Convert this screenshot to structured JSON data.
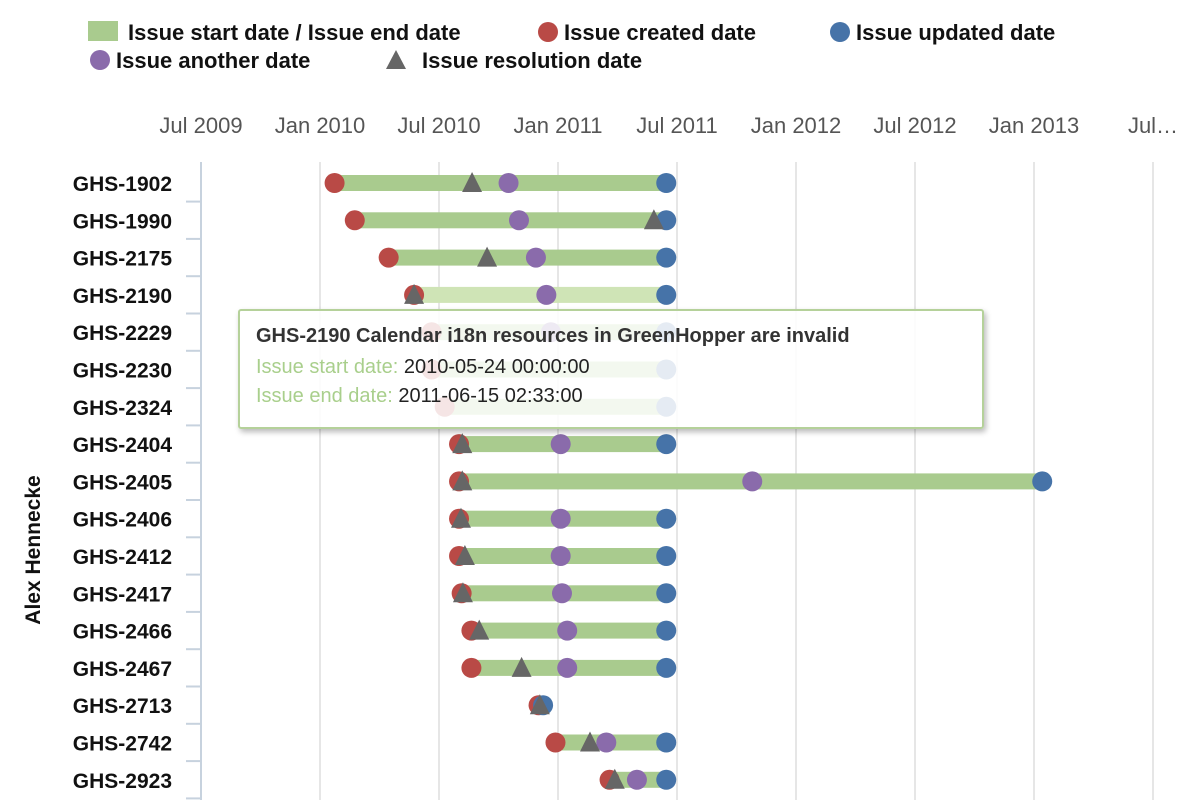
{
  "chart_data": {
    "type": "gantt",
    "legend": [
      {
        "name": "Issue start date / Issue end date",
        "marker": "bar",
        "color": "#a9cb8e"
      },
      {
        "name": "Issue created date",
        "marker": "circle",
        "color": "#b94a46"
      },
      {
        "name": "Issue updated date",
        "marker": "circle",
        "color": "#4673a8"
      },
      {
        "name": "Issue another date",
        "marker": "circle",
        "color": "#8a6bab"
      },
      {
        "name": "Issue resolution date",
        "marker": "triangle",
        "color": "#666666"
      }
    ],
    "x_axis": {
      "range": [
        "2009-07-01",
        "2013-07-01"
      ],
      "tick_labels": [
        "Jul 2009",
        "Jan 2010",
        "Jul 2010",
        "Jan 2011",
        "Jul 2011",
        "Jan 2012",
        "Jul 2012",
        "Jan 2013",
        "Jul…"
      ]
    },
    "y_group_label": "Alex Hennecke",
    "categories": [
      "GHS-1902",
      "GHS-1990",
      "GHS-2175",
      "GHS-2190",
      "GHS-2229",
      "GHS-2230",
      "GHS-2324",
      "GHS-2404",
      "GHS-2405",
      "GHS-2406",
      "GHS-2412",
      "GHS-2417",
      "GHS-2466",
      "GHS-2467",
      "GHS-2713",
      "GHS-2742",
      "GHS-2923"
    ],
    "issues": [
      {
        "key": "GHS-1902",
        "start": "2010-01-22",
        "end": "2011-06-15",
        "created": "2010-01-22",
        "updated": "2011-06-15",
        "another": "2010-10-16",
        "resolution": "2010-08-21"
      },
      {
        "key": "GHS-1990",
        "start": "2010-02-22",
        "end": "2011-06-15",
        "created": "2010-02-22",
        "updated": "2011-06-15",
        "another": "2010-11-01",
        "resolution": "2011-05-27"
      },
      {
        "key": "GHS-2175",
        "start": "2010-04-15",
        "end": "2011-06-15",
        "created": "2010-04-15",
        "updated": "2011-06-15",
        "another": "2010-11-27",
        "resolution": "2010-09-13"
      },
      {
        "key": "GHS-2190",
        "start": "2010-05-24",
        "end": "2011-06-15",
        "created": "2010-05-24",
        "updated": "2011-06-15",
        "another": "2010-12-13",
        "resolution": "2010-05-24"
      },
      {
        "key": "GHS-2229",
        "start": "2010-06-20",
        "end": "2011-06-15",
        "created": "2010-06-20",
        "updated": "2011-06-15",
        "another": "2010-12-20",
        "resolution": null
      },
      {
        "key": "GHS-2230",
        "start": "2010-06-20",
        "end": "2011-06-15",
        "created": "2010-06-20",
        "updated": "2011-06-15",
        "another": null,
        "resolution": null
      },
      {
        "key": "GHS-2324",
        "start": "2010-07-10",
        "end": "2011-06-15",
        "created": "2010-07-10",
        "updated": "2011-06-15",
        "another": null,
        "resolution": null
      },
      {
        "key": "GHS-2404",
        "start": "2010-08-01",
        "end": "2011-06-15",
        "created": "2010-08-01",
        "updated": "2011-06-15",
        "another": "2011-01-04",
        "resolution": "2010-08-06"
      },
      {
        "key": "GHS-2405",
        "start": "2010-08-01",
        "end": "2013-01-12",
        "created": "2010-08-01",
        "updated": "2013-01-12",
        "another": "2011-10-25",
        "resolution": "2010-08-06"
      },
      {
        "key": "GHS-2406",
        "start": "2010-08-01",
        "end": "2011-06-15",
        "created": "2010-08-01",
        "updated": "2011-06-15",
        "another": "2011-01-04",
        "resolution": "2010-08-04"
      },
      {
        "key": "GHS-2412",
        "start": "2010-08-01",
        "end": "2011-06-15",
        "created": "2010-08-01",
        "updated": "2011-06-15",
        "another": "2011-01-04",
        "resolution": "2010-08-10"
      },
      {
        "key": "GHS-2417",
        "start": "2010-08-05",
        "end": "2011-06-15",
        "created": "2010-08-05",
        "updated": "2011-06-15",
        "another": "2011-01-06",
        "resolution": "2010-08-07"
      },
      {
        "key": "GHS-2466",
        "start": "2010-08-20",
        "end": "2011-06-15",
        "created": "2010-08-20",
        "updated": "2011-06-15",
        "another": "2011-01-14",
        "resolution": "2010-09-01"
      },
      {
        "key": "GHS-2467",
        "start": "2010-08-20",
        "end": "2011-06-15",
        "created": "2010-08-20",
        "updated": "2011-06-15",
        "another": "2011-01-14",
        "resolution": "2010-11-05"
      },
      {
        "key": "GHS-2713",
        "start": "2010-12-01",
        "end": "2010-12-08",
        "created": "2010-12-01",
        "updated": "2010-12-08",
        "another": null,
        "resolution": "2010-12-03"
      },
      {
        "key": "GHS-2742",
        "start": "2010-12-27",
        "end": "2011-06-15",
        "created": "2010-12-27",
        "updated": "2011-06-15",
        "another": "2011-03-15",
        "resolution": "2011-02-18"
      },
      {
        "key": "GHS-2923",
        "start": "2011-03-20",
        "end": "2011-06-15",
        "created": "2011-03-20",
        "updated": "2011-06-15",
        "another": "2011-05-01",
        "resolution": "2011-03-28"
      }
    ],
    "highlighted_issue": "GHS-2190",
    "grid": true
  },
  "tooltip": {
    "title": "GHS-2190 Calendar i18n resources in GreenHopper are invalid",
    "start_label": "Issue start date:",
    "start_value": "2010-05-24 00:00:00",
    "end_label": "Issue end date:",
    "end_value": "2011-06-15 02:33:00"
  }
}
